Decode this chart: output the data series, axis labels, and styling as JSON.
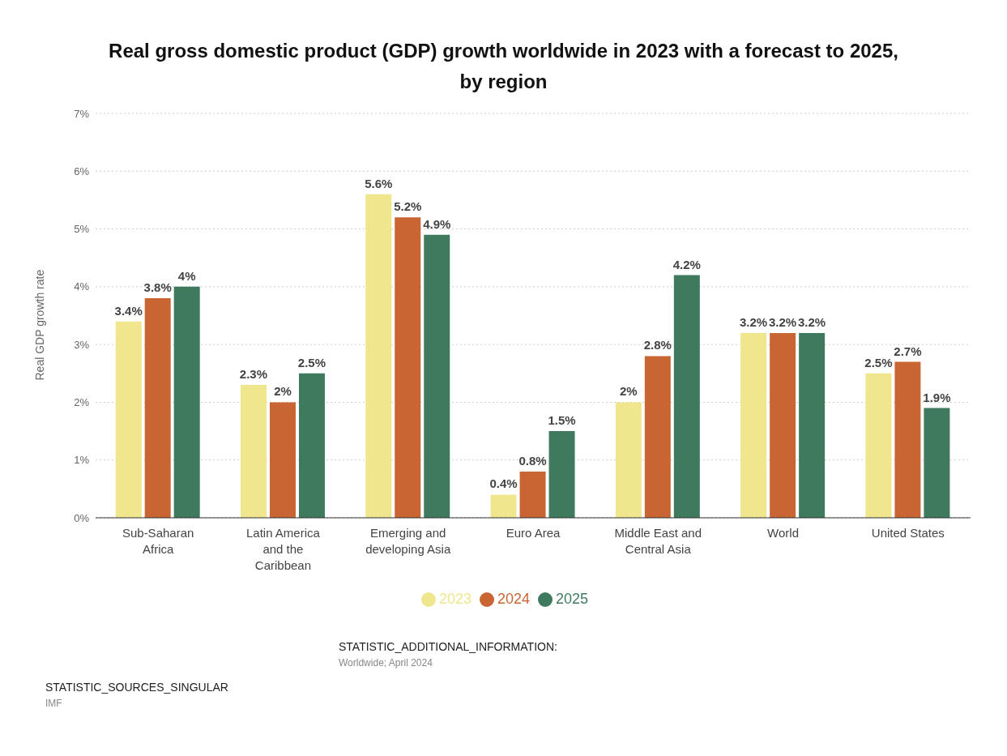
{
  "chart_data": {
    "type": "bar",
    "title": "Real gross domestic product (GDP) growth worldwide in 2023 with a forecast to 2025, by region",
    "categories": [
      "Sub-Saharan Africa",
      "Latin America and the Caribbean",
      "Emerging and developing Asia",
      "Euro Area",
      "Middle East and Central Asia",
      "World",
      "United States"
    ],
    "series": [
      {
        "name": "2023",
        "color": "#efe68e",
        "values": [
          3.4,
          2.3,
          5.6,
          0.4,
          2,
          3.2,
          2.5
        ],
        "value_labels": [
          "3.4%",
          "2.3%",
          "5.6%",
          "0.4%",
          "2%",
          "3.2%",
          "2.5%"
        ]
      },
      {
        "name": "2024",
        "color": "#c96533",
        "values": [
          3.8,
          2,
          5.2,
          0.8,
          2.8,
          3.2,
          2.7
        ],
        "value_labels": [
          "3.8%",
          "2%",
          "5.2%",
          "0.8%",
          "2.8%",
          "3.2%",
          "2.7%"
        ]
      },
      {
        "name": "2025",
        "color": "#3f7a5e",
        "values": [
          4,
          2.5,
          4.9,
          1.5,
          4.2,
          3.2,
          1.9
        ],
        "value_labels": [
          "4%",
          "2.5%",
          "4.9%",
          "1.5%",
          "4.2%",
          "3.2%",
          "1.9%"
        ]
      }
    ],
    "ylabel": "Real GDP growth rate",
    "ylim": [
      0,
      7
    ],
    "yticks": [
      {
        "value": 0,
        "label": "0%"
      },
      {
        "value": 1,
        "label": "1%"
      },
      {
        "value": 2,
        "label": "2%"
      },
      {
        "value": 3,
        "label": "3%"
      },
      {
        "value": 4,
        "label": "4%"
      },
      {
        "value": 5,
        "label": "5%"
      },
      {
        "value": 6,
        "label": "6%"
      },
      {
        "value": 7,
        "label": "7%"
      }
    ],
    "grid": "y",
    "legend": "bottom",
    "annotations": [
      "STATISTIC_ADDITIONAL_INFORMATION:",
      "Worldwide; April 2024",
      "STATISTIC_SOURCES_SINGULAR",
      "IMF"
    ]
  }
}
